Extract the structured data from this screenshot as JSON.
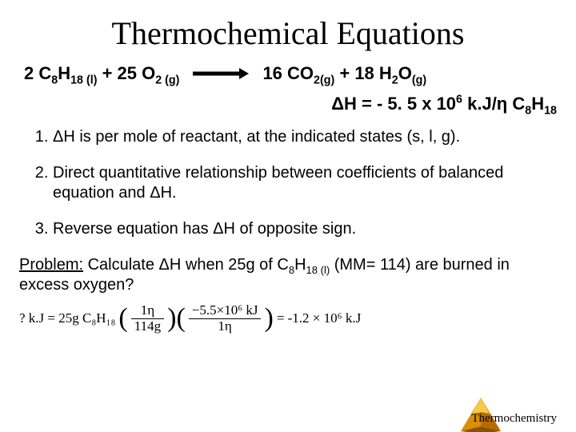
{
  "title": "Thermochemical Equations",
  "equation": {
    "lhs_html": "2 C<sub>8</sub>H<sub>18 (l)</sub> + 25 O<sub>2 (g)</sub>",
    "rhs_html": "16 CO<sub>2(g)</sub> + 18 H<sub>2</sub>O<sub>(g)</sub>",
    "dh_html": "ΔH = - 5. 5 x 10<sup>6</sup> k.J/η C<sub>8</sub>H<sub>18</sub>"
  },
  "points": [
    "ΔH is per mole of reactant, at the indicated states (s, l, g).",
    "Direct quantitative relationship between coefficients of balanced equation and ΔH.",
    "Reverse equation has ΔH of opposite sign."
  ],
  "problem": {
    "label": "Problem:",
    "text_html": " Calculate ΔH when 25g of C<sub>8</sub>H<sub>18 (l)</sub> (MM= 114) are burned in excess oxygen?"
  },
  "calc": {
    "prefix": "? k.J = 25g C₈H₁₈",
    "frac1": {
      "num": "1η",
      "den": "114g"
    },
    "frac2": {
      "num": "−5.5×10⁶ kJ",
      "den": "1η"
    },
    "result": "= -1.2 × 10⁶ k.J"
  },
  "footer": "Thermochemistry",
  "style": {
    "background": "#ffffff",
    "text_color": "#000000",
    "title_font": "Times New Roman",
    "title_size_pt": 30,
    "body_font": "Arial",
    "body_size_pt": 15,
    "arrow": {
      "width": 70,
      "height": 10,
      "color": "#000000"
    },
    "pyramid_colors": {
      "top": "#f7c948",
      "left": "#d98e04",
      "right": "#b56b00"
    }
  }
}
